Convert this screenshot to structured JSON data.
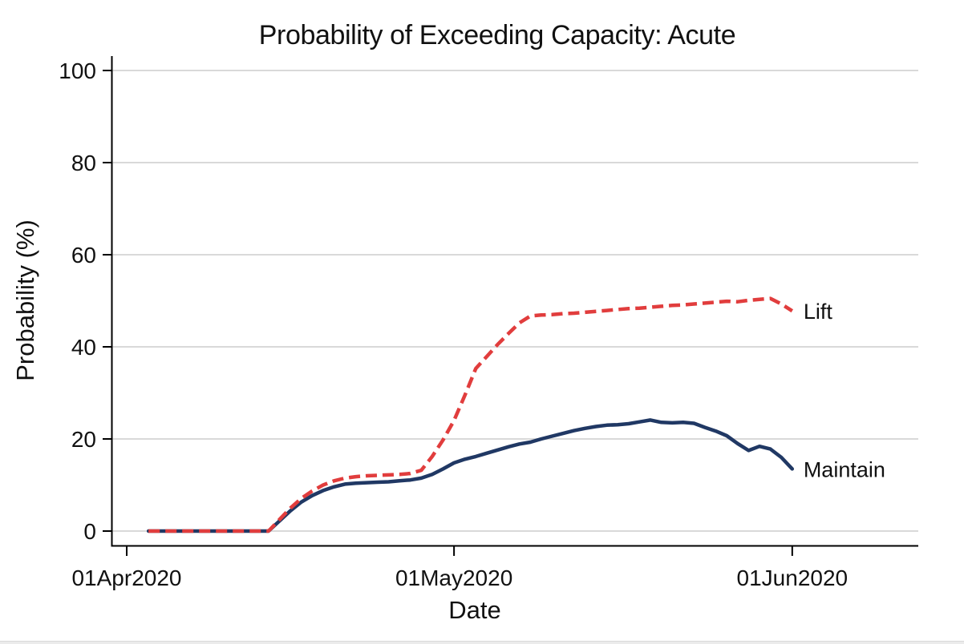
{
  "window": {
    "background_color": "#ffffff",
    "bottom_edge_color": "#ebebeb"
  },
  "chart_data": {
    "type": "line",
    "title": "Probability of Exceeding Capacity: Acute",
    "xlabel": "Date",
    "ylabel": "Probability (%)",
    "x_unit": "days_since_01Apr2020",
    "xlim": [
      -1.5,
      72.5
    ],
    "ylim": [
      0,
      100
    ],
    "grid": "horizontal",
    "grid_color": "#d9d9d9",
    "axis_color": "#000000",
    "x_ticks": [
      {
        "day": 0,
        "label": "01Apr2020"
      },
      {
        "day": 30,
        "label": "01May2020"
      },
      {
        "day": 61,
        "label": "01Jun2020"
      }
    ],
    "y_ticks": [
      0,
      20,
      40,
      60,
      80,
      100
    ],
    "legend_position": "line-end-labels",
    "series": [
      {
        "name": "Maintain",
        "color": "#203864",
        "style": "solid",
        "points": [
          [
            2,
            0
          ],
          [
            3,
            0
          ],
          [
            4,
            0
          ],
          [
            5,
            0
          ],
          [
            6,
            0
          ],
          [
            7,
            0
          ],
          [
            8,
            0
          ],
          [
            9,
            0
          ],
          [
            10,
            0
          ],
          [
            11,
            0
          ],
          [
            12,
            0
          ],
          [
            13,
            0
          ],
          [
            14,
            2.2
          ],
          [
            15,
            4.4
          ],
          [
            16,
            6.3
          ],
          [
            17,
            7.7
          ],
          [
            18,
            8.8
          ],
          [
            19,
            9.6
          ],
          [
            20,
            10.2
          ],
          [
            21,
            10.4
          ],
          [
            22,
            10.5
          ],
          [
            23,
            10.6
          ],
          [
            24,
            10.7
          ],
          [
            25,
            10.9
          ],
          [
            26,
            11.1
          ],
          [
            27,
            11.5
          ],
          [
            28,
            12.3
          ],
          [
            29,
            13.5
          ],
          [
            30,
            14.8
          ],
          [
            31,
            15.6
          ],
          [
            32,
            16.2
          ],
          [
            33,
            16.9
          ],
          [
            34,
            17.6
          ],
          [
            35,
            18.3
          ],
          [
            36,
            18.9
          ],
          [
            37,
            19.3
          ],
          [
            38,
            20.0
          ],
          [
            39,
            20.6
          ],
          [
            40,
            21.2
          ],
          [
            41,
            21.8
          ],
          [
            42,
            22.3
          ],
          [
            43,
            22.7
          ],
          [
            44,
            23.0
          ],
          [
            45,
            23.1
          ],
          [
            46,
            23.3
          ],
          [
            47,
            23.7
          ],
          [
            48,
            24.1
          ],
          [
            49,
            23.6
          ],
          [
            50,
            23.5
          ],
          [
            51,
            23.6
          ],
          [
            52,
            23.4
          ],
          [
            53,
            22.5
          ],
          [
            54,
            21.7
          ],
          [
            55,
            20.7
          ],
          [
            56,
            19.0
          ],
          [
            57,
            17.5
          ],
          [
            58,
            18.4
          ],
          [
            59,
            17.8
          ],
          [
            60,
            16.0
          ],
          [
            61,
            13.5
          ]
        ]
      },
      {
        "name": "Lift",
        "color": "#e13d3d",
        "style": "dashed",
        "points": [
          [
            2,
            0
          ],
          [
            3,
            0
          ],
          [
            4,
            0
          ],
          [
            5,
            0
          ],
          [
            6,
            0
          ],
          [
            7,
            0
          ],
          [
            8,
            0
          ],
          [
            9,
            0
          ],
          [
            10,
            0
          ],
          [
            11,
            0
          ],
          [
            12,
            0
          ],
          [
            13,
            0
          ],
          [
            14,
            2.5
          ],
          [
            15,
            5.0
          ],
          [
            16,
            7.1
          ],
          [
            17,
            8.7
          ],
          [
            18,
            10.0
          ],
          [
            19,
            10.9
          ],
          [
            20,
            11.5
          ],
          [
            21,
            11.8
          ],
          [
            22,
            12.0
          ],
          [
            23,
            12.1
          ],
          [
            24,
            12.2
          ],
          [
            25,
            12.3
          ],
          [
            26,
            12.5
          ],
          [
            27,
            13.2
          ],
          [
            28,
            16.2
          ],
          [
            29,
            19.8
          ],
          [
            30,
            24.0
          ],
          [
            31,
            29.5
          ],
          [
            32,
            35.3
          ],
          [
            33,
            37.9
          ],
          [
            34,
            40.5
          ],
          [
            35,
            42.9
          ],
          [
            36,
            45.2
          ],
          [
            37,
            46.7
          ],
          [
            38,
            46.9
          ],
          [
            39,
            47.0
          ],
          [
            40,
            47.2
          ],
          [
            41,
            47.3
          ],
          [
            42,
            47.5
          ],
          [
            43,
            47.7
          ],
          [
            44,
            47.9
          ],
          [
            45,
            48.1
          ],
          [
            46,
            48.3
          ],
          [
            47,
            48.4
          ],
          [
            48,
            48.6
          ],
          [
            49,
            48.8
          ],
          [
            50,
            49.0
          ],
          [
            51,
            49.1
          ],
          [
            52,
            49.3
          ],
          [
            53,
            49.5
          ],
          [
            54,
            49.7
          ],
          [
            55,
            49.9
          ],
          [
            56,
            49.8
          ],
          [
            57,
            50.1
          ],
          [
            58,
            50.3
          ],
          [
            59,
            50.5
          ],
          [
            60,
            49.3
          ],
          [
            61,
            47.8
          ]
        ]
      }
    ]
  }
}
